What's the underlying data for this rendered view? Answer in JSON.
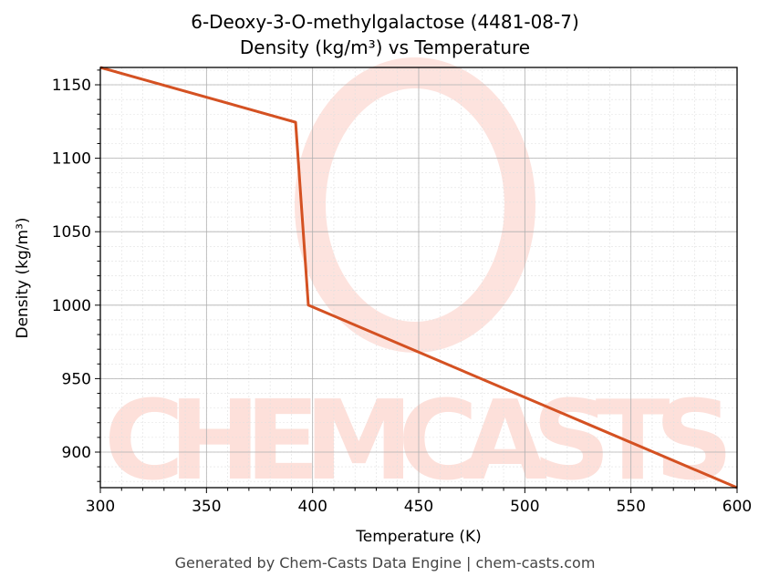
{
  "title_line1": "6-Deoxy-3-O-methylgalactose (4481-08-7)",
  "title_line2": "Density (kg/m³) vs Temperature",
  "footer": "Generated by Chem-Casts Data Engine | chem-casts.com",
  "watermark": "CHEMCASTS",
  "colors": {
    "line": "#d45122",
    "grid_major": "#b0b0b0",
    "grid_minor": "#e0e0e0",
    "watermark": "#fde0da"
  },
  "chart_data": {
    "type": "line",
    "title": "6-Deoxy-3-O-methylgalactose (4481-08-7)\nDensity (kg/m³) vs Temperature",
    "xlabel": "Temperature (K)",
    "ylabel": "Density (kg/m³)",
    "xlim": [
      300,
      600
    ],
    "ylim": [
      875.8,
      1161.8
    ],
    "xticks": [
      300,
      350,
      400,
      450,
      500,
      550,
      600
    ],
    "yticks": [
      900,
      950,
      1000,
      1050,
      1100,
      1150
    ],
    "grid": true,
    "series": [
      {
        "name": "Density",
        "x": [
          300,
          392,
          398,
          600
        ],
        "y": [
          1161.8,
          1124.5,
          1000.0,
          875.8
        ]
      }
    ]
  }
}
